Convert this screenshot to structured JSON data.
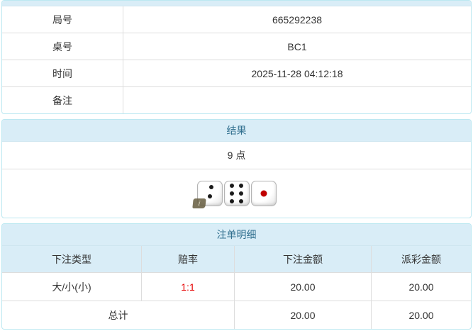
{
  "theme": {
    "header_bg": "#d9edf7",
    "header_text": "#31708f",
    "panel_border": "#bce8f1",
    "row_divider": "#dddddd",
    "text": "#333333",
    "odds_red": "#e60000",
    "pip_black": "#1a1a1a",
    "pip_red": "#c00000"
  },
  "game_info": {
    "rows": [
      {
        "label": "局号",
        "value": "665292238"
      },
      {
        "label": "桌号",
        "value": "BC1"
      },
      {
        "label": "时间",
        "value": "2025-11-28 04:12:18"
      },
      {
        "label": "备注",
        "value": ""
      }
    ]
  },
  "result": {
    "title": "结果",
    "points": "9 点",
    "dice": [
      2,
      6,
      1
    ],
    "info_icon_glyph": "i"
  },
  "bets": {
    "title": "注单明细",
    "columns": [
      "下注类型",
      "赔率",
      "下注金额",
      "派彩金额"
    ],
    "rows": [
      {
        "type": "大/小(小)",
        "odds": "1:1",
        "amount": "20.00",
        "payout": "20.00"
      }
    ],
    "total": {
      "label": "总计",
      "amount": "20.00",
      "payout": "20.00"
    }
  }
}
